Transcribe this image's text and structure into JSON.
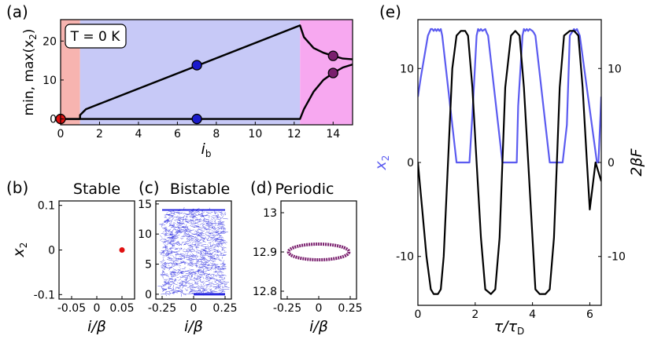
{
  "colors": {
    "stable_region": "#f7b4b0",
    "bistable_region": "#c7c9f7",
    "periodic_region": "#f7a8f0",
    "x2_line": "#5b5bf0",
    "force_line": "#000000",
    "stable_marker": "#e01010",
    "bistable_marker": "#1a1acc",
    "periodic_marker": "#7a1f6e"
  },
  "chart_data": [
    {
      "id": "a",
      "panel_label": "(a)",
      "type": "line",
      "annotation": "T = 0 K",
      "xlabel": "i",
      "xlabel_sub": "b",
      "ylabel": "min, max(x",
      "ylabel_sub": "2",
      "ylabel_end": ")",
      "xlim": [
        0,
        15
      ],
      "ylim": [
        -1.5,
        25.5
      ],
      "xticks": [
        0,
        2,
        4,
        6,
        8,
        10,
        12,
        14
      ],
      "yticks": [
        0,
        10,
        20
      ],
      "regions": [
        {
          "name": "stable",
          "x": [
            0,
            1.0
          ]
        },
        {
          "name": "bistable",
          "x": [
            1.0,
            12.3
          ]
        },
        {
          "name": "periodic",
          "x": [
            12.3,
            15
          ]
        }
      ],
      "series": [
        {
          "name": "max",
          "x": [
            0,
            1.0,
            1.0,
            1.3,
            12.3,
            12.5,
            13.0,
            13.5,
            14.0,
            14.5,
            15.0
          ],
          "y": [
            0,
            0,
            1.0,
            2.5,
            24.0,
            21.0,
            18.2,
            17.0,
            16.2,
            15.5,
            15.3
          ]
        },
        {
          "name": "min",
          "x": [
            0,
            12.3,
            12.5,
            13.0,
            13.5,
            14.0,
            14.5,
            15.0
          ],
          "y": [
            0,
            0,
            2.5,
            7.0,
            10.0,
            11.8,
            13.2,
            14.0
          ]
        }
      ],
      "markers": [
        {
          "group": "stable",
          "x": 0.0,
          "y": 0.0
        },
        {
          "group": "bistable",
          "x": 7.0,
          "y": 13.8
        },
        {
          "group": "bistable",
          "x": 7.0,
          "y": 0.0
        },
        {
          "group": "periodic",
          "x": 14.0,
          "y": 16.2
        },
        {
          "group": "periodic",
          "x": 14.0,
          "y": 11.8
        }
      ]
    },
    {
      "id": "b",
      "panel_label": "(b)",
      "title": "Stable",
      "type": "scatter",
      "xlabel": "i/β",
      "ylabel": "x",
      "ylabel_sub": "2",
      "xlim": [
        -0.075,
        0.075
      ],
      "ylim": [
        -0.11,
        0.11
      ],
      "xticks": [
        -0.05,
        0,
        0.05
      ],
      "xtick_labels": [
        "-0.05",
        "0",
        "0.05"
      ],
      "yticks": [
        -0.1,
        0,
        0.1
      ],
      "ytick_labels": [
        "-0.1",
        "0",
        "0.1"
      ],
      "points": [
        {
          "x": 0.05,
          "y": 0.0
        }
      ]
    },
    {
      "id": "c",
      "panel_label": "(c)",
      "title": "Bistable",
      "type": "scatter",
      "xlabel": "i/β",
      "xlim": [
        -0.3,
        0.3
      ],
      "ylim": [
        -0.8,
        15.5
      ],
      "xticks": [
        -0.25,
        0,
        0.25
      ],
      "xtick_labels": [
        "-0.25",
        "0",
        "0.25"
      ],
      "yticks": [
        0,
        5,
        10,
        15
      ],
      "ytick_labels": [
        "0",
        "5",
        "10",
        "15"
      ],
      "cloud": {
        "x_range": [
          -0.25,
          0.25
        ],
        "y_range": [
          0,
          14
        ],
        "n_points": 1400
      }
    },
    {
      "id": "d",
      "panel_label": "(d)",
      "title": "Periodic",
      "type": "scatter",
      "xlabel": "i/β",
      "xlim": [
        -0.3,
        0.3
      ],
      "ylim": [
        12.78,
        13.03
      ],
      "xticks": [
        -0.25,
        0,
        0.25
      ],
      "xtick_labels": [
        "-0.25",
        "0",
        "0.25"
      ],
      "yticks": [
        12.8,
        12.9,
        13.0
      ],
      "ytick_labels": [
        "12.8",
        "12.9",
        "13"
      ],
      "ellipse": {
        "cx": 0,
        "cy": 12.9,
        "rx": 0.24,
        "ry": 0.02
      }
    },
    {
      "id": "e",
      "panel_label": "(e)",
      "type": "line",
      "xlabel": "τ/τ",
      "xlabel_sub": "D",
      "ylabel_left": "x",
      "ylabel_left_sub": "2",
      "ylabel_right": "2βF",
      "xlim": [
        0,
        6.4
      ],
      "ylim": [
        -15.2,
        15.2
      ],
      "xticks": [
        0,
        2,
        4,
        6
      ],
      "yticks_left": [
        -10,
        0,
        10
      ],
      "ytick_labels_left": [
        "-10",
        "0",
        "10"
      ],
      "yticks_right": [
        -10,
        0,
        10
      ],
      "ytick_labels_right": [
        "-10",
        "0",
        "10"
      ],
      "series": [
        {
          "name": "x2",
          "x": [
            0,
            0.1,
            0.35,
            0.45,
            0.5,
            0.55,
            0.6,
            0.65,
            0.7,
            0.75,
            0.8,
            0.85,
            1.35,
            1.4,
            1.45,
            1.8,
            1.9,
            2.05,
            2.1,
            2.15,
            2.2,
            2.25,
            2.35,
            2.4,
            2.45,
            2.95,
            3.0,
            3.05,
            3.45,
            3.5,
            3.65,
            3.7,
            3.75,
            3.8,
            3.85,
            3.9,
            4.0,
            4.05,
            4.1,
            4.6,
            4.65,
            4.7,
            5.05,
            5.2,
            5.3,
            5.45,
            5.5,
            5.55,
            5.65,
            6.25,
            6.3,
            6.4
          ],
          "y": [
            7,
            9,
            13.5,
            14.2,
            14.2,
            14.0,
            14.2,
            14.0,
            14.2,
            14.0,
            14.2,
            13.5,
            0,
            0,
            0,
            0,
            5,
            13.5,
            14.2,
            14.0,
            14.2,
            14.0,
            14.2,
            13.8,
            13.5,
            0,
            0,
            0,
            0,
            6,
            13.5,
            14.2,
            14.0,
            14.2,
            14.0,
            14.2,
            14.0,
            13.8,
            13.5,
            0,
            0,
            0,
            0,
            4,
            13.5,
            14.2,
            14.0,
            14.2,
            13.5,
            0,
            0,
            7
          ]
        },
        {
          "name": "2βF",
          "x": [
            0,
            0.15,
            0.3,
            0.45,
            0.55,
            0.7,
            0.8,
            0.9,
            1.2,
            1.35,
            1.5,
            1.65,
            1.75,
            1.9,
            2.05,
            2.2,
            2.35,
            2.55,
            2.7,
            2.85,
            2.95,
            3.05,
            3.25,
            3.4,
            3.55,
            3.7,
            3.85,
            4.0,
            4.1,
            4.25,
            4.45,
            4.6,
            4.75,
            4.85,
            4.95,
            5.1,
            5.3,
            5.45,
            5.6,
            5.75,
            5.9,
            6.0,
            6.2,
            6.4
          ],
          "y": [
            0,
            -5,
            -10,
            -13.5,
            -14,
            -14,
            -13.5,
            -10,
            10,
            13.5,
            14,
            14,
            13.5,
            8,
            0,
            -8,
            -13.5,
            -14,
            -13.5,
            -8,
            0,
            8,
            13.5,
            14,
            13.5,
            8,
            0,
            -8,
            -13.5,
            -14,
            -14,
            -13.5,
            -8,
            0,
            8,
            13.5,
            14,
            14,
            13.5,
            8,
            0,
            -5,
            0,
            -2
          ]
        }
      ]
    }
  ]
}
